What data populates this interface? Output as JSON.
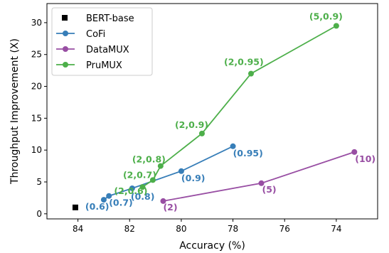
{
  "chart_data": {
    "type": "line",
    "xlabel": "Accuracy (%)",
    "ylabel": "Throughput Improvement (X)",
    "xlim": [
      85.2,
      72.4
    ],
    "ylim": [
      -0.8,
      33
    ],
    "x_ticks": [
      84,
      82,
      80,
      78,
      76,
      74
    ],
    "y_ticks": [
      0,
      5,
      10,
      15,
      20,
      25,
      30
    ],
    "grid": false,
    "legend_position": "top-left",
    "series": [
      {
        "name": "BERT-base",
        "type": "scatter",
        "marker": "square",
        "color": "#000000",
        "points": [
          {
            "x": 84.1,
            "y": 1.0,
            "label": ""
          }
        ]
      },
      {
        "name": "CoFi",
        "type": "line",
        "marker": "circle",
        "color": "#377eb8",
        "points": [
          {
            "x": 83.0,
            "y": 2.2,
            "label": "(0.6)"
          },
          {
            "x": 82.8,
            "y": 2.8,
            "label": "(0.7)"
          },
          {
            "x": 81.9,
            "y": 4.0,
            "label": "(0.8)"
          },
          {
            "x": 80.0,
            "y": 6.7,
            "label": "(0.9)"
          },
          {
            "x": 78.0,
            "y": 10.6,
            "label": "(0.95)"
          }
        ]
      },
      {
        "name": "DataMUX",
        "type": "line",
        "marker": "circle",
        "color": "#984ea3",
        "points": [
          {
            "x": 80.7,
            "y": 2.0,
            "label": "(2)"
          },
          {
            "x": 76.9,
            "y": 4.8,
            "label": "(5)"
          },
          {
            "x": 73.3,
            "y": 9.7,
            "label": "(10)"
          }
        ]
      },
      {
        "name": "PruMUX",
        "type": "line",
        "marker": "circle",
        "color": "#4daf4a",
        "points": [
          {
            "x": 81.5,
            "y": 4.2,
            "label": "(2,0.6)"
          },
          {
            "x": 81.1,
            "y": 5.3,
            "label": "(2,0.7)"
          },
          {
            "x": 80.8,
            "y": 7.5,
            "label": "(2,0.8)"
          },
          {
            "x": 79.2,
            "y": 12.6,
            "label": "(2,0.9)"
          },
          {
            "x": 77.3,
            "y": 22.0,
            "label": "(2,0.95)"
          },
          {
            "x": 74.0,
            "y": 29.5,
            "label": "(5,0.9)"
          }
        ]
      }
    ]
  }
}
